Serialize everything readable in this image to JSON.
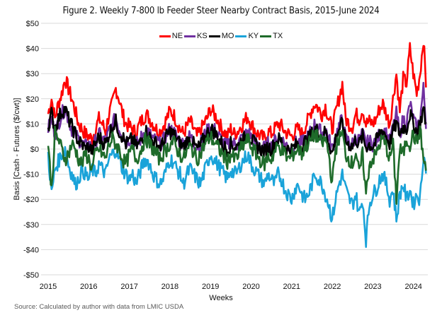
{
  "chart_data": {
    "type": "line",
    "title": "Figure 2. Weekly 7-800 lb Feeder Steer Nearby Contract Basis, 2015-June 2024",
    "xlabel": "Weeks",
    "ylabel": "Basis [Cash - Futures ($/cwt)]",
    "ylim": [
      -50,
      50
    ],
    "yticks": [
      50,
      40,
      30,
      20,
      10,
      0,
      -10,
      -20,
      -30,
      -40,
      -50
    ],
    "ytick_labels": [
      "$50",
      "$40",
      "$30",
      "$20",
      "$10",
      "$0",
      "-$10",
      "-$20",
      "-$30",
      "-$40",
      "-$50"
    ],
    "xlim": [
      2015.0,
      2024.45
    ],
    "xticks": [
      2015,
      2016,
      2017,
      2018,
      2019,
      2020,
      2021,
      2022,
      2023,
      2024
    ],
    "xtick_labels": [
      "2015",
      "2016",
      "2017",
      "2018",
      "2019",
      "2020",
      "2021",
      "2022",
      "2023",
      "2024"
    ],
    "grid": true,
    "legend_position": "top-center",
    "x_start": 2015.0,
    "x_step": 0.0833,
    "series": [
      {
        "name": "NE",
        "color": "#FF0000",
        "values": [
          14,
          20,
          12,
          18,
          22,
          28,
          24,
          20,
          15,
          10,
          8,
          6,
          5,
          4,
          8,
          12,
          10,
          7,
          14,
          18,
          24,
          20,
          14,
          10,
          9,
          8,
          6,
          10,
          12,
          14,
          12,
          10,
          8,
          7,
          9,
          12,
          15,
          14,
          11,
          8,
          6,
          9,
          11,
          8,
          5,
          7,
          10,
          12,
          16,
          14,
          12,
          9,
          7,
          5,
          8,
          6,
          7,
          9,
          11,
          13,
          10,
          8,
          6,
          5,
          4,
          7,
          6,
          8,
          10,
          9,
          7,
          6,
          5,
          7,
          8,
          6,
          9,
          12,
          16,
          18,
          16,
          14,
          17,
          12,
          8,
          14,
          20,
          26,
          12,
          10,
          9,
          14,
          12,
          16,
          10,
          11,
          10,
          12,
          16,
          18,
          14,
          10,
          20,
          30,
          15,
          28,
          26,
          40,
          30,
          22,
          30,
          44,
          20
        ]
      },
      {
        "name": "KS",
        "color": "#7030A0",
        "values": [
          8,
          12,
          6,
          10,
          14,
          16,
          12,
          8,
          6,
          4,
          2,
          1,
          2,
          0,
          3,
          6,
          4,
          3,
          7,
          10,
          12,
          8,
          6,
          3,
          4,
          5,
          2,
          3,
          6,
          8,
          6,
          4,
          3,
          2,
          3,
          6,
          8,
          7,
          5,
          3,
          2,
          4,
          5,
          3,
          1,
          2,
          5,
          7,
          9,
          8,
          6,
          4,
          2,
          1,
          3,
          2,
          2,
          4,
          5,
          7,
          5,
          3,
          2,
          1,
          0,
          2,
          1,
          3,
          5,
          4,
          2,
          1,
          1,
          2,
          3,
          2,
          4,
          5,
          8,
          10,
          8,
          6,
          8,
          4,
          0,
          5,
          9,
          12,
          4,
          3,
          2,
          5,
          3,
          6,
          2,
          3,
          2,
          3,
          6,
          8,
          6,
          3,
          8,
          14,
          6,
          12,
          10,
          18,
          12,
          8,
          12,
          24,
          6
        ]
      },
      {
        "name": "MO",
        "color": "#000000",
        "values": [
          9,
          14,
          8,
          12,
          15,
          16,
          12,
          9,
          6,
          3,
          2,
          0,
          1,
          -1,
          2,
          5,
          3,
          2,
          6,
          9,
          11,
          7,
          5,
          2,
          3,
          4,
          1,
          2,
          5,
          7,
          5,
          3,
          2,
          1,
          2,
          5,
          7,
          6,
          4,
          2,
          1,
          3,
          4,
          2,
          0,
          1,
          4,
          6,
          8,
          7,
          5,
          3,
          1,
          0,
          2,
          1,
          1,
          3,
          4,
          6,
          4,
          2,
          1,
          0,
          -1,
          1,
          0,
          2,
          4,
          3,
          1,
          0,
          0,
          1,
          2,
          1,
          3,
          4,
          6,
          8,
          7,
          5,
          7,
          3,
          -2,
          4,
          8,
          10,
          3,
          2,
          1,
          4,
          2,
          5,
          1,
          2,
          1,
          3,
          6,
          8,
          5,
          2,
          7,
          10,
          6,
          9,
          8,
          14,
          10,
          7,
          10,
          16,
          8
        ]
      },
      {
        "name": "KY",
        "color": "#1AA3D9",
        "values": [
          -2,
          -18,
          -8,
          -5,
          -2,
          0,
          -6,
          -10,
          -14,
          -12,
          -8,
          -10,
          -12,
          -8,
          -10,
          -6,
          -8,
          -10,
          -4,
          -2,
          0,
          -4,
          -8,
          -10,
          -12,
          -10,
          -14,
          -10,
          -6,
          -4,
          -6,
          -10,
          -12,
          -14,
          -12,
          -8,
          -4,
          -5,
          -8,
          -10,
          -14,
          -10,
          -8,
          -10,
          -12,
          -14,
          -10,
          -6,
          -2,
          -4,
          -6,
          -8,
          -10,
          -12,
          -8,
          -10,
          -9,
          -6,
          -4,
          -2,
          -6,
          -8,
          -10,
          -12,
          -14,
          -10,
          -12,
          -14,
          -10,
          -12,
          -16,
          -18,
          -20,
          -16,
          -14,
          -18,
          -20,
          -18,
          -14,
          -10,
          -12,
          -14,
          -18,
          -22,
          -28,
          -20,
          -14,
          -10,
          -16,
          -20,
          -22,
          -18,
          -26,
          -20,
          -36,
          -22,
          -18,
          -16,
          -12,
          -10,
          -14,
          -20,
          -16,
          -28,
          -18,
          -14,
          -20,
          -16,
          -22,
          -18,
          -20,
          -2,
          -10
        ]
      },
      {
        "name": "TX",
        "color": "#1E6B2A",
        "values": [
          2,
          -16,
          6,
          4,
          0,
          -4,
          -2,
          2,
          0,
          -4,
          -6,
          -2,
          -4,
          -8,
          -2,
          0,
          -2,
          -4,
          2,
          4,
          2,
          0,
          -4,
          -6,
          -2,
          0,
          -4,
          -2,
          2,
          4,
          2,
          0,
          -2,
          -4,
          -2,
          0,
          2,
          3,
          0,
          -2,
          -4,
          -1,
          1,
          -1,
          -4,
          -2,
          1,
          3,
          5,
          3,
          1,
          -1,
          -3,
          -5,
          -2,
          -4,
          -3,
          0,
          2,
          4,
          1,
          -1,
          -3,
          -5,
          -6,
          -3,
          -4,
          -1,
          1,
          0,
          -2,
          -4,
          -3,
          -1,
          0,
          -2,
          1,
          2,
          4,
          6,
          4,
          2,
          4,
          -2,
          -14,
          0,
          4,
          6,
          -2,
          -4,
          -6,
          -1,
          -10,
          -2,
          -18,
          -6,
          -4,
          -2,
          2,
          4,
          1,
          -4,
          2,
          -20,
          0,
          -2,
          4,
          2,
          6,
          2,
          8,
          -4,
          -10
        ]
      }
    ],
    "source": "Source: Calculated by author with data from LMIC USDA"
  }
}
